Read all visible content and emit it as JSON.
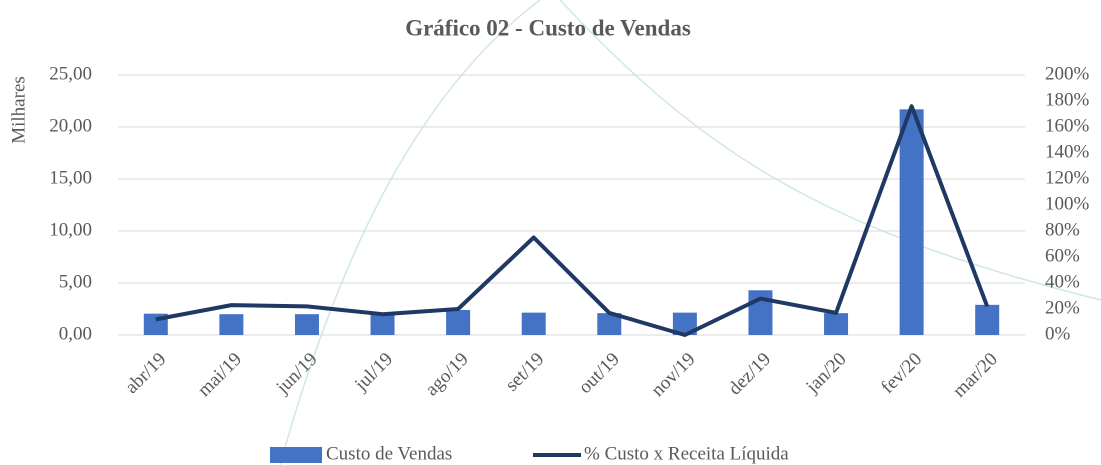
{
  "chart_data": {
    "type": "bar",
    "title": "Gráfico 02 - Custo de Vendas",
    "y_label": "Milhares",
    "categories": [
      "abr/19",
      "mai/19",
      "jun/19",
      "jul/19",
      "ago/19",
      "set/19",
      "out/19",
      "nov/19",
      "dez/19",
      "jan/20",
      "fev/20",
      "mar/20"
    ],
    "series": [
      {
        "name": "Custo de Vendas",
        "type": "bar",
        "color": "#4472c4",
        "values": [
          2.05,
          2.0,
          2.0,
          2.0,
          2.4,
          2.15,
          2.1,
          2.15,
          4.3,
          2.1,
          21.7,
          2.9
        ]
      },
      {
        "name": "% Custo x Receita Líquida",
        "type": "line",
        "axis": "y2",
        "color": "#1f3864",
        "values": [
          12,
          23,
          22,
          16,
          20,
          75,
          17,
          0,
          28,
          17,
          176,
          22
        ]
      }
    ],
    "ylim": [
      0,
      25
    ],
    "yticks": [
      {
        "value": 0,
        "label": "0,00"
      },
      {
        "value": 5,
        "label": "5,00"
      },
      {
        "value": 10,
        "label": "10,00"
      },
      {
        "value": 15,
        "label": "15,00"
      },
      {
        "value": 20,
        "label": "20,00"
      },
      {
        "value": 25,
        "label": "25,00"
      }
    ],
    "y2lim": [
      0,
      200
    ],
    "y2ticks": [
      {
        "value": 0,
        "label": "0%"
      },
      {
        "value": 20,
        "label": "20%"
      },
      {
        "value": 40,
        "label": "40%"
      },
      {
        "value": 60,
        "label": "60%"
      },
      {
        "value": 80,
        "label": "80%"
      },
      {
        "value": 100,
        "label": "100%"
      },
      {
        "value": 120,
        "label": "120%"
      },
      {
        "value": 140,
        "label": "140%"
      },
      {
        "value": 160,
        "label": "160%"
      },
      {
        "value": 180,
        "label": "180%"
      },
      {
        "value": 200,
        "label": "200%"
      }
    ],
    "grid": true
  }
}
